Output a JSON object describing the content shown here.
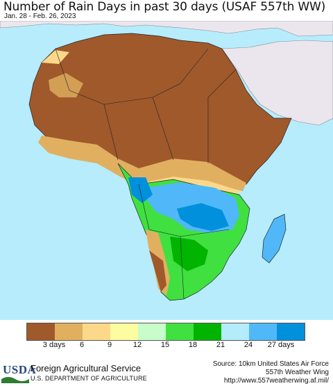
{
  "title": "Number of Rain Days in past 30 days (USAF 557th WW)",
  "subtitle": "Jan. 28 - Feb. 26, 2023",
  "legend": {
    "colors": [
      "#a0592b",
      "#e0b060",
      "#fcd98a",
      "#fcfca0",
      "#c8fcc8",
      "#40e040",
      "#00b400",
      "#b4ecfc",
      "#50b8f8",
      "#0090dc"
    ],
    "labels": [
      "3 days",
      "6",
      "9",
      "12",
      "15",
      "18",
      "21",
      "24",
      "27 days"
    ]
  },
  "footer": {
    "logo": "USDA",
    "agency": "Foreign Agricultural Service",
    "department": "U.S. DEPARTMENT OF AGRICULTURE",
    "source_line1": "Source: 10km United States Air Force",
    "source_line2": "557th Weather Wing",
    "source_line3": "http://www.557weatherwing.af.mil/"
  },
  "map_colors": {
    "ocean": "#b6ecfc",
    "outside_land": "#ebe6ee",
    "dry": "#a0592b",
    "light_dry": "#e0b060",
    "yellow": "#fcd98a",
    "green": "#40e040",
    "dark_green": "#00b400",
    "blue": "#50b8f8",
    "dark_blue": "#0090dc"
  }
}
